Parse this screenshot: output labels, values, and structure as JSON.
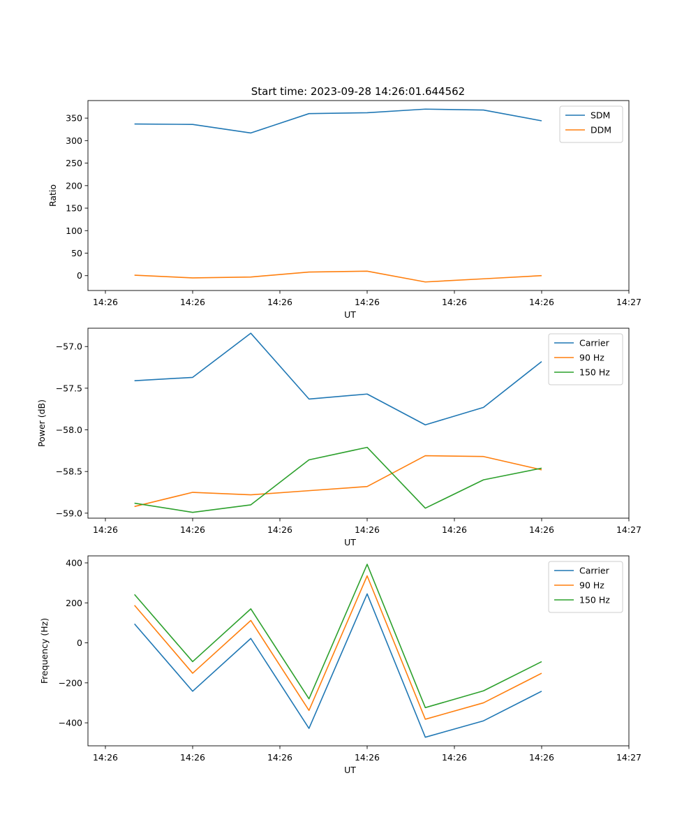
{
  "figure": {
    "title": "Start time: 2023-09-28 14:26:01.644562"
  },
  "colors": {
    "blue": "#1f77b4",
    "orange": "#ff7f0e",
    "green": "#2ca02c"
  },
  "chart_data": [
    {
      "type": "line",
      "title": "Start time: 2023-09-28 14:26:01.644562",
      "xlabel": "UT",
      "ylabel": "Ratio",
      "x": [
        1,
        2,
        3,
        4,
        5,
        6,
        7,
        8
      ],
      "xlim": [
        0.2,
        9.5
      ],
      "xticks": [
        0.5,
        2,
        3.5,
        5,
        6.5,
        8,
        9.5
      ],
      "xtick_labels": [
        "14:26",
        "14:26",
        "14:26",
        "14:26",
        "14:26",
        "14:26",
        "14:27"
      ],
      "ylim": [
        -33,
        389
      ],
      "yticks": [
        0,
        50,
        100,
        150,
        200,
        250,
        300,
        350
      ],
      "ytick_labels": [
        "0",
        "50",
        "100",
        "150",
        "200",
        "250",
        "300",
        "350"
      ],
      "legend": "upper right",
      "series": [
        {
          "name": "SDM",
          "color": "#1f77b4",
          "values": [
            337,
            336,
            317,
            360,
            362,
            370,
            368,
            344
          ]
        },
        {
          "name": "DDM",
          "color": "#ff7f0e",
          "values": [
            1,
            -5,
            -3,
            8,
            10,
            -14,
            -7,
            0
          ]
        }
      ]
    },
    {
      "type": "line",
      "title": "",
      "xlabel": "UT",
      "ylabel": "Power (dB)",
      "x": [
        1,
        2,
        3,
        4,
        5,
        6,
        7,
        8
      ],
      "xlim": [
        0.2,
        9.5
      ],
      "xticks": [
        0.5,
        2,
        3.5,
        5,
        6.5,
        8,
        9.5
      ],
      "xtick_labels": [
        "14:26",
        "14:26",
        "14:26",
        "14:26",
        "14:26",
        "14:26",
        "14:27"
      ],
      "ylim": [
        -59.06,
        -56.78
      ],
      "yticks": [
        -59.0,
        -58.5,
        -58.0,
        -57.5,
        -57.0
      ],
      "ytick_labels": [
        "−59.0",
        "−58.5",
        "−58.0",
        "−57.5",
        "−57.0"
      ],
      "legend": "upper right",
      "series": [
        {
          "name": "Carrier",
          "color": "#1f77b4",
          "values": [
            -57.41,
            -57.37,
            -56.84,
            -57.63,
            -57.57,
            -57.94,
            -57.73,
            -57.18
          ]
        },
        {
          "name": "90 Hz",
          "color": "#ff7f0e",
          "values": [
            -58.92,
            -58.75,
            -58.78,
            -58.73,
            -58.68,
            -58.31,
            -58.32,
            -58.48
          ]
        },
        {
          "name": "150 Hz",
          "color": "#2ca02c",
          "values": [
            -58.88,
            -58.99,
            -58.9,
            -58.36,
            -58.21,
            -58.94,
            -58.6,
            -58.46
          ]
        }
      ]
    },
    {
      "type": "line",
      "title": "",
      "xlabel": "UT",
      "ylabel": "Frequency (Hz)",
      "x": [
        1,
        2,
        3,
        4,
        5,
        6,
        7,
        8
      ],
      "xlim": [
        0.2,
        9.5
      ],
      "xticks": [
        0.5,
        2,
        3.5,
        5,
        6.5,
        8,
        9.5
      ],
      "xtick_labels": [
        "14:26",
        "14:26",
        "14:26",
        "14:26",
        "14:26",
        "14:26",
        "14:27"
      ],
      "ylim": [
        -515,
        435
      ],
      "yticks": [
        -400,
        -200,
        0,
        200,
        400
      ],
      "ytick_labels": [
        "−400",
        "−200",
        "0",
        "200",
        "400"
      ],
      "legend": "upper right",
      "series": [
        {
          "name": "Carrier",
          "color": "#1f77b4",
          "values": [
            95,
            -242,
            22,
            -428,
            245,
            -472,
            -390,
            -242
          ]
        },
        {
          "name": "90 Hz",
          "color": "#ff7f0e",
          "values": [
            188,
            -152,
            112,
            -338,
            335,
            -382,
            -300,
            -152
          ]
        },
        {
          "name": "150 Hz",
          "color": "#2ca02c",
          "values": [
            242,
            -94,
            170,
            -280,
            393,
            -324,
            -240,
            -94
          ]
        }
      ]
    }
  ]
}
